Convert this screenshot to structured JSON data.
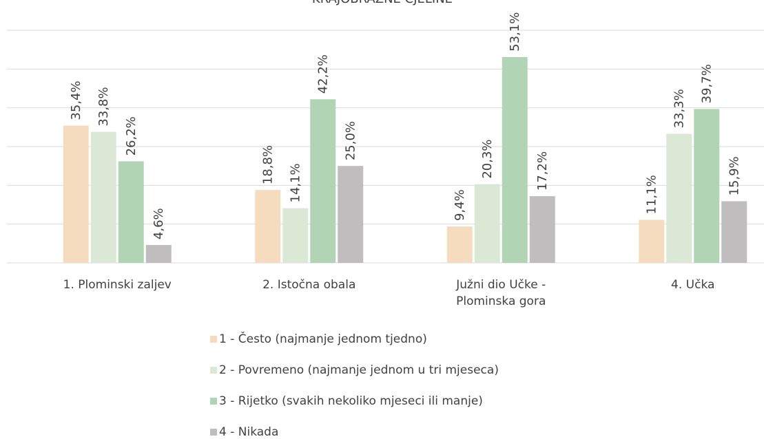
{
  "chart_data": {
    "type": "bar",
    "title": "KRAJOBRAZNE CJELINE",
    "categories": [
      "1. Plominski zaljev",
      "2. Istočna obala",
      "Južni dio Učke - Plominska gora",
      "4. Učka"
    ],
    "series": [
      {
        "name": "1 - Često (najmanje jednom tjedno)",
        "color": "#f5dcbf",
        "values": [
          35.4,
          18.8,
          9.4,
          11.1
        ],
        "value_labels": [
          "35,4%",
          "18,8%",
          "9,4%",
          "11,1%"
        ]
      },
      {
        "name": "2 - Povremeno (najmanje jednom u tri mjeseca)",
        "color": "#dce8d6",
        "values": [
          33.8,
          14.1,
          20.3,
          33.3
        ],
        "value_labels": [
          "33,8%",
          "14,1%",
          "20,3%",
          "33,3%"
        ]
      },
      {
        "name": "3 - Rijetko (svakih nekoliko mjeseci ili manje)",
        "color": "#b1d4b5",
        "values": [
          26.2,
          42.2,
          53.1,
          39.7
        ],
        "value_labels": [
          "26,2%",
          "42,2%",
          "53,1%",
          "39,7%"
        ]
      },
      {
        "name": "4 - Nikada",
        "color": "#bfbdbd",
        "values": [
          4.6,
          25.0,
          17.2,
          15.9
        ],
        "value_labels": [
          "4,6%",
          "25,0%",
          "17,2%",
          "15,9%"
        ]
      }
    ],
    "ylim": [
      0,
      60
    ],
    "yticks": [
      0,
      10,
      20,
      30,
      40,
      50,
      60
    ],
    "grid": true,
    "legend": "bottom"
  }
}
